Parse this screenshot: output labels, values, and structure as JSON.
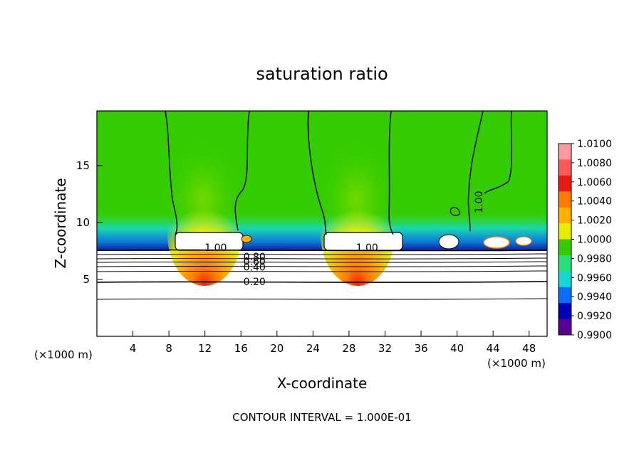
{
  "chart_data": {
    "type": "heatmap",
    "title": "saturation ratio",
    "xlabel": "X-coordinate",
    "ylabel": "Z-coordinate",
    "x_unit": "(×1000 m)",
    "x_unit_right": "(×1000 m)",
    "xlim": [
      0,
      50
    ],
    "ylim": [
      0,
      19.8
    ],
    "x_ticks": [
      4,
      8,
      12,
      16,
      20,
      24,
      28,
      32,
      36,
      40,
      44,
      48
    ],
    "y_ticks": [
      5,
      10,
      15
    ],
    "colorbar": {
      "levels": [
        "1.0100",
        "1.0080",
        "1.0060",
        "1.0040",
        "1.0020",
        "1.0000",
        "0.9980",
        "0.9960",
        "0.9940",
        "0.9920",
        "0.9900"
      ],
      "colors": [
        "#ff9aa0",
        "#ff5a5a",
        "#ea1a12",
        "#ff7a00",
        "#ffb000",
        "#e8ec00",
        "#33cc00",
        "#27e07a",
        "#16d8d4",
        "#0a6cff",
        "#0000b4",
        "#5a0090"
      ]
    },
    "contour_labels": [
      {
        "text": "1.00",
        "x": 13.2,
        "y": 7.8
      },
      {
        "text": "0.80",
        "x": 17.5,
        "y": 7.0
      },
      {
        "text": "0.60",
        "x": 17.5,
        "y": 6.6
      },
      {
        "text": "0.40",
        "x": 17.5,
        "y": 6.1
      },
      {
        "text": "0.20",
        "x": 17.5,
        "y": 4.8
      },
      {
        "text": "1.00",
        "x": 30.0,
        "y": 7.8
      },
      {
        "text": "1.00",
        "x": 42.4,
        "y": 11.8
      }
    ],
    "grid": false,
    "legend": "colorbar right"
  },
  "footer": {
    "contour_interval": "CONTOUR INTERVAL = 1.000E-01"
  }
}
